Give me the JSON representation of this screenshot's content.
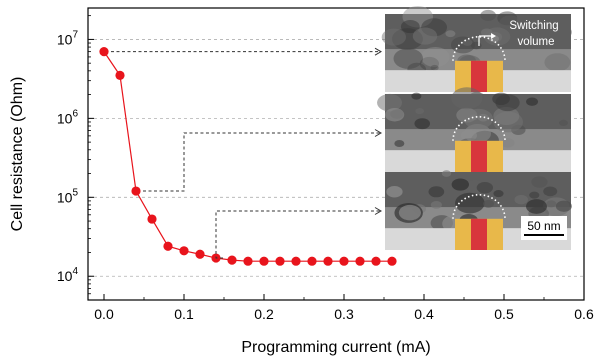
{
  "chart_data": {
    "type": "scatter",
    "title": "",
    "xlabel": "Programming current (mA)",
    "ylabel": "Cell resistance (Ohm)",
    "xlim": [
      -0.02,
      0.6
    ],
    "ylim": [
      5000,
      25000000
    ],
    "yscale": "log",
    "grid": "horizontal-dashed",
    "x_ticks": [
      "0.0",
      "0.1",
      "0.2",
      "0.3",
      "0.4",
      "0.5",
      "0.6"
    ],
    "y_ticks": [
      {
        "base": "10",
        "exp": "4"
      },
      {
        "base": "10",
        "exp": "5"
      },
      {
        "base": "10",
        "exp": "6"
      },
      {
        "base": "10",
        "exp": "7"
      }
    ],
    "series": [
      {
        "color": "#e8141c",
        "marker": "circle",
        "line": "solid",
        "x": [
          0.0,
          0.02,
          0.04,
          0.06,
          0.08,
          0.1,
          0.12,
          0.14,
          0.16,
          0.18,
          0.2,
          0.22,
          0.24,
          0.26,
          0.28,
          0.3,
          0.32,
          0.34,
          0.36
        ],
        "y": [
          7000000,
          3500000,
          120000,
          53000,
          24000,
          21000,
          19000,
          17000,
          16000,
          15500,
          15500,
          15500,
          15500,
          15500,
          15500,
          15500,
          15500,
          15500,
          15500
        ]
      }
    ],
    "insets": [
      {
        "label": "Switching\nvolume",
        "scale_bar": ""
      },
      {
        "label": "",
        "scale_bar": ""
      },
      {
        "label": "",
        "scale_bar": "50 nm"
      }
    ],
    "inset_annotation": {
      "line1": "Switching",
      "line2": "volume"
    },
    "scale_bar_label": "50 nm",
    "colors": {
      "data": "#e8141c",
      "electrode": "#e8b84a",
      "filament": "#d8363c",
      "grid": "#b0b0b0"
    }
  }
}
